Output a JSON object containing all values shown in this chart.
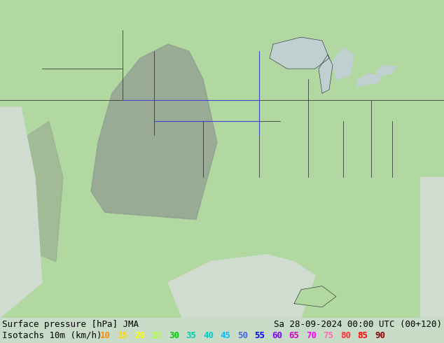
{
  "title_left": "Surface pressure [hPa] JMA",
  "title_right": "Sa 28-09-2024 00:00 UTC (00+120)",
  "legend_label": "Isotachs 10m (km/h)",
  "isotach_values": [
    "10",
    "15",
    "20",
    "25",
    "30",
    "35",
    "40",
    "45",
    "50",
    "55",
    "60",
    "65",
    "70",
    "75",
    "80",
    "85",
    "90"
  ],
  "isotach_colors": [
    "#ff8c00",
    "#ffd700",
    "#ffff00",
    "#adff2f",
    "#00cd00",
    "#00cdaa",
    "#00cdcd",
    "#00bfff",
    "#4169e1",
    "#0000ff",
    "#7b00ff",
    "#cd00cd",
    "#ff00ff",
    "#ff69b4",
    "#ff3030",
    "#ff0000",
    "#8b0000"
  ],
  "bg_color_outside": "#c8dcc8",
  "bottom_bar_color": "#c8c8c8",
  "fig_width": 6.34,
  "fig_height": 4.9,
  "dpi": 100,
  "font_size": 9,
  "font_family": "monospace",
  "map_green_main": "#90d890",
  "map_green_light": "#b8e8b8",
  "map_gray": "#a0a8a0",
  "ocean_color": "#d8e8d8"
}
